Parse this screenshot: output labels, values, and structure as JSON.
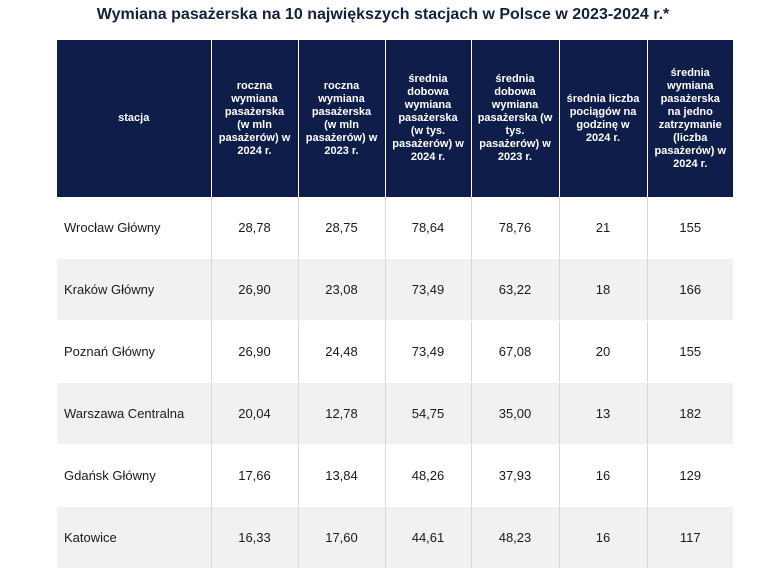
{
  "title": "Wymiana pasażerska na 10 największych stacjach w Polsce w 2023-2024 r.*",
  "headers": [
    "stacja",
    "roczna wymiana pasażerska (w mln pasażerów) w 2024 r.",
    "roczna wymiana pasażerska (w mln pasażerów) w 2023 r.",
    "średnia dobowa wymiana pasażerska (w tys. pasażerów) w 2024 r.",
    "średnia dobowa wymiana pasażerska (w tys. pasażerów) w 2023 r.",
    "średnia liczba pociągów na godzinę w 2024 r.",
    "średnia wymiana pasażerska na jedno zatrzymanie (liczba pasażerów) w 2024 r."
  ],
  "rows": [
    [
      "Wrocław Główny",
      "28,78",
      "28,75",
      "78,64",
      "78,76",
      "21",
      "155"
    ],
    [
      "Kraków Główny",
      "26,90",
      "23,08",
      "73,49",
      "63,22",
      "18",
      "166"
    ],
    [
      "Poznań Główny",
      "26,90",
      "24,48",
      "73,49",
      "67,08",
      "20",
      "155"
    ],
    [
      "Warszawa Centralna",
      "20,04",
      "12,78",
      "54,75",
      "35,00",
      "13",
      "182"
    ],
    [
      "Gdańsk Główny",
      "17,66",
      "13,84",
      "48,26",
      "37,93",
      "16",
      "129"
    ],
    [
      "Katowice",
      "16,33",
      "17,60",
      "44,61",
      "48,23",
      "16",
      "117"
    ]
  ]
}
